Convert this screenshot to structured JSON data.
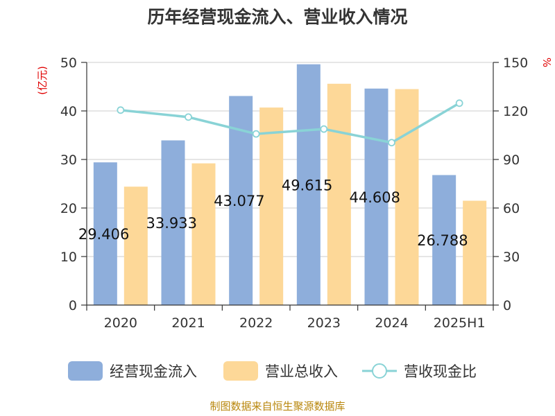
{
  "chart_data": {
    "type": "bar",
    "title": "历年经营现金流入、营业收入情况",
    "categories": [
      "2020",
      "2021",
      "2022",
      "2023",
      "2024",
      "2025H1"
    ],
    "y_left": {
      "unit": "(亿元)",
      "ylim": [
        0,
        50
      ],
      "ticks": [
        0,
        10,
        20,
        30,
        40,
        50
      ]
    },
    "y_right": {
      "unit": "%",
      "ylim": [
        0,
        150
      ],
      "ticks": [
        0,
        30,
        60,
        90,
        120,
        150
      ]
    },
    "series": [
      {
        "name": "经营现金流入",
        "kind": "bar",
        "axis": "left",
        "color": "#8eaedb",
        "values": [
          29.406,
          33.933,
          43.077,
          49.615,
          44.608,
          26.788
        ],
        "labels": [
          "29.406",
          "33.933",
          "43.077",
          "49.615",
          "44.608",
          "26.788"
        ]
      },
      {
        "name": "营业总收入",
        "kind": "bar",
        "axis": "left",
        "color": "#fdd898",
        "values": [
          24.4,
          29.2,
          40.7,
          45.6,
          44.5,
          21.5
        ]
      },
      {
        "name": "营收现金比",
        "kind": "line",
        "axis": "right",
        "color": "#89d3d6",
        "values": [
          120.5,
          116.2,
          105.8,
          108.8,
          100.4,
          124.8
        ]
      }
    ],
    "grid": true,
    "legend": "bottom"
  },
  "source": "制图数据来自恒生聚源数据库"
}
